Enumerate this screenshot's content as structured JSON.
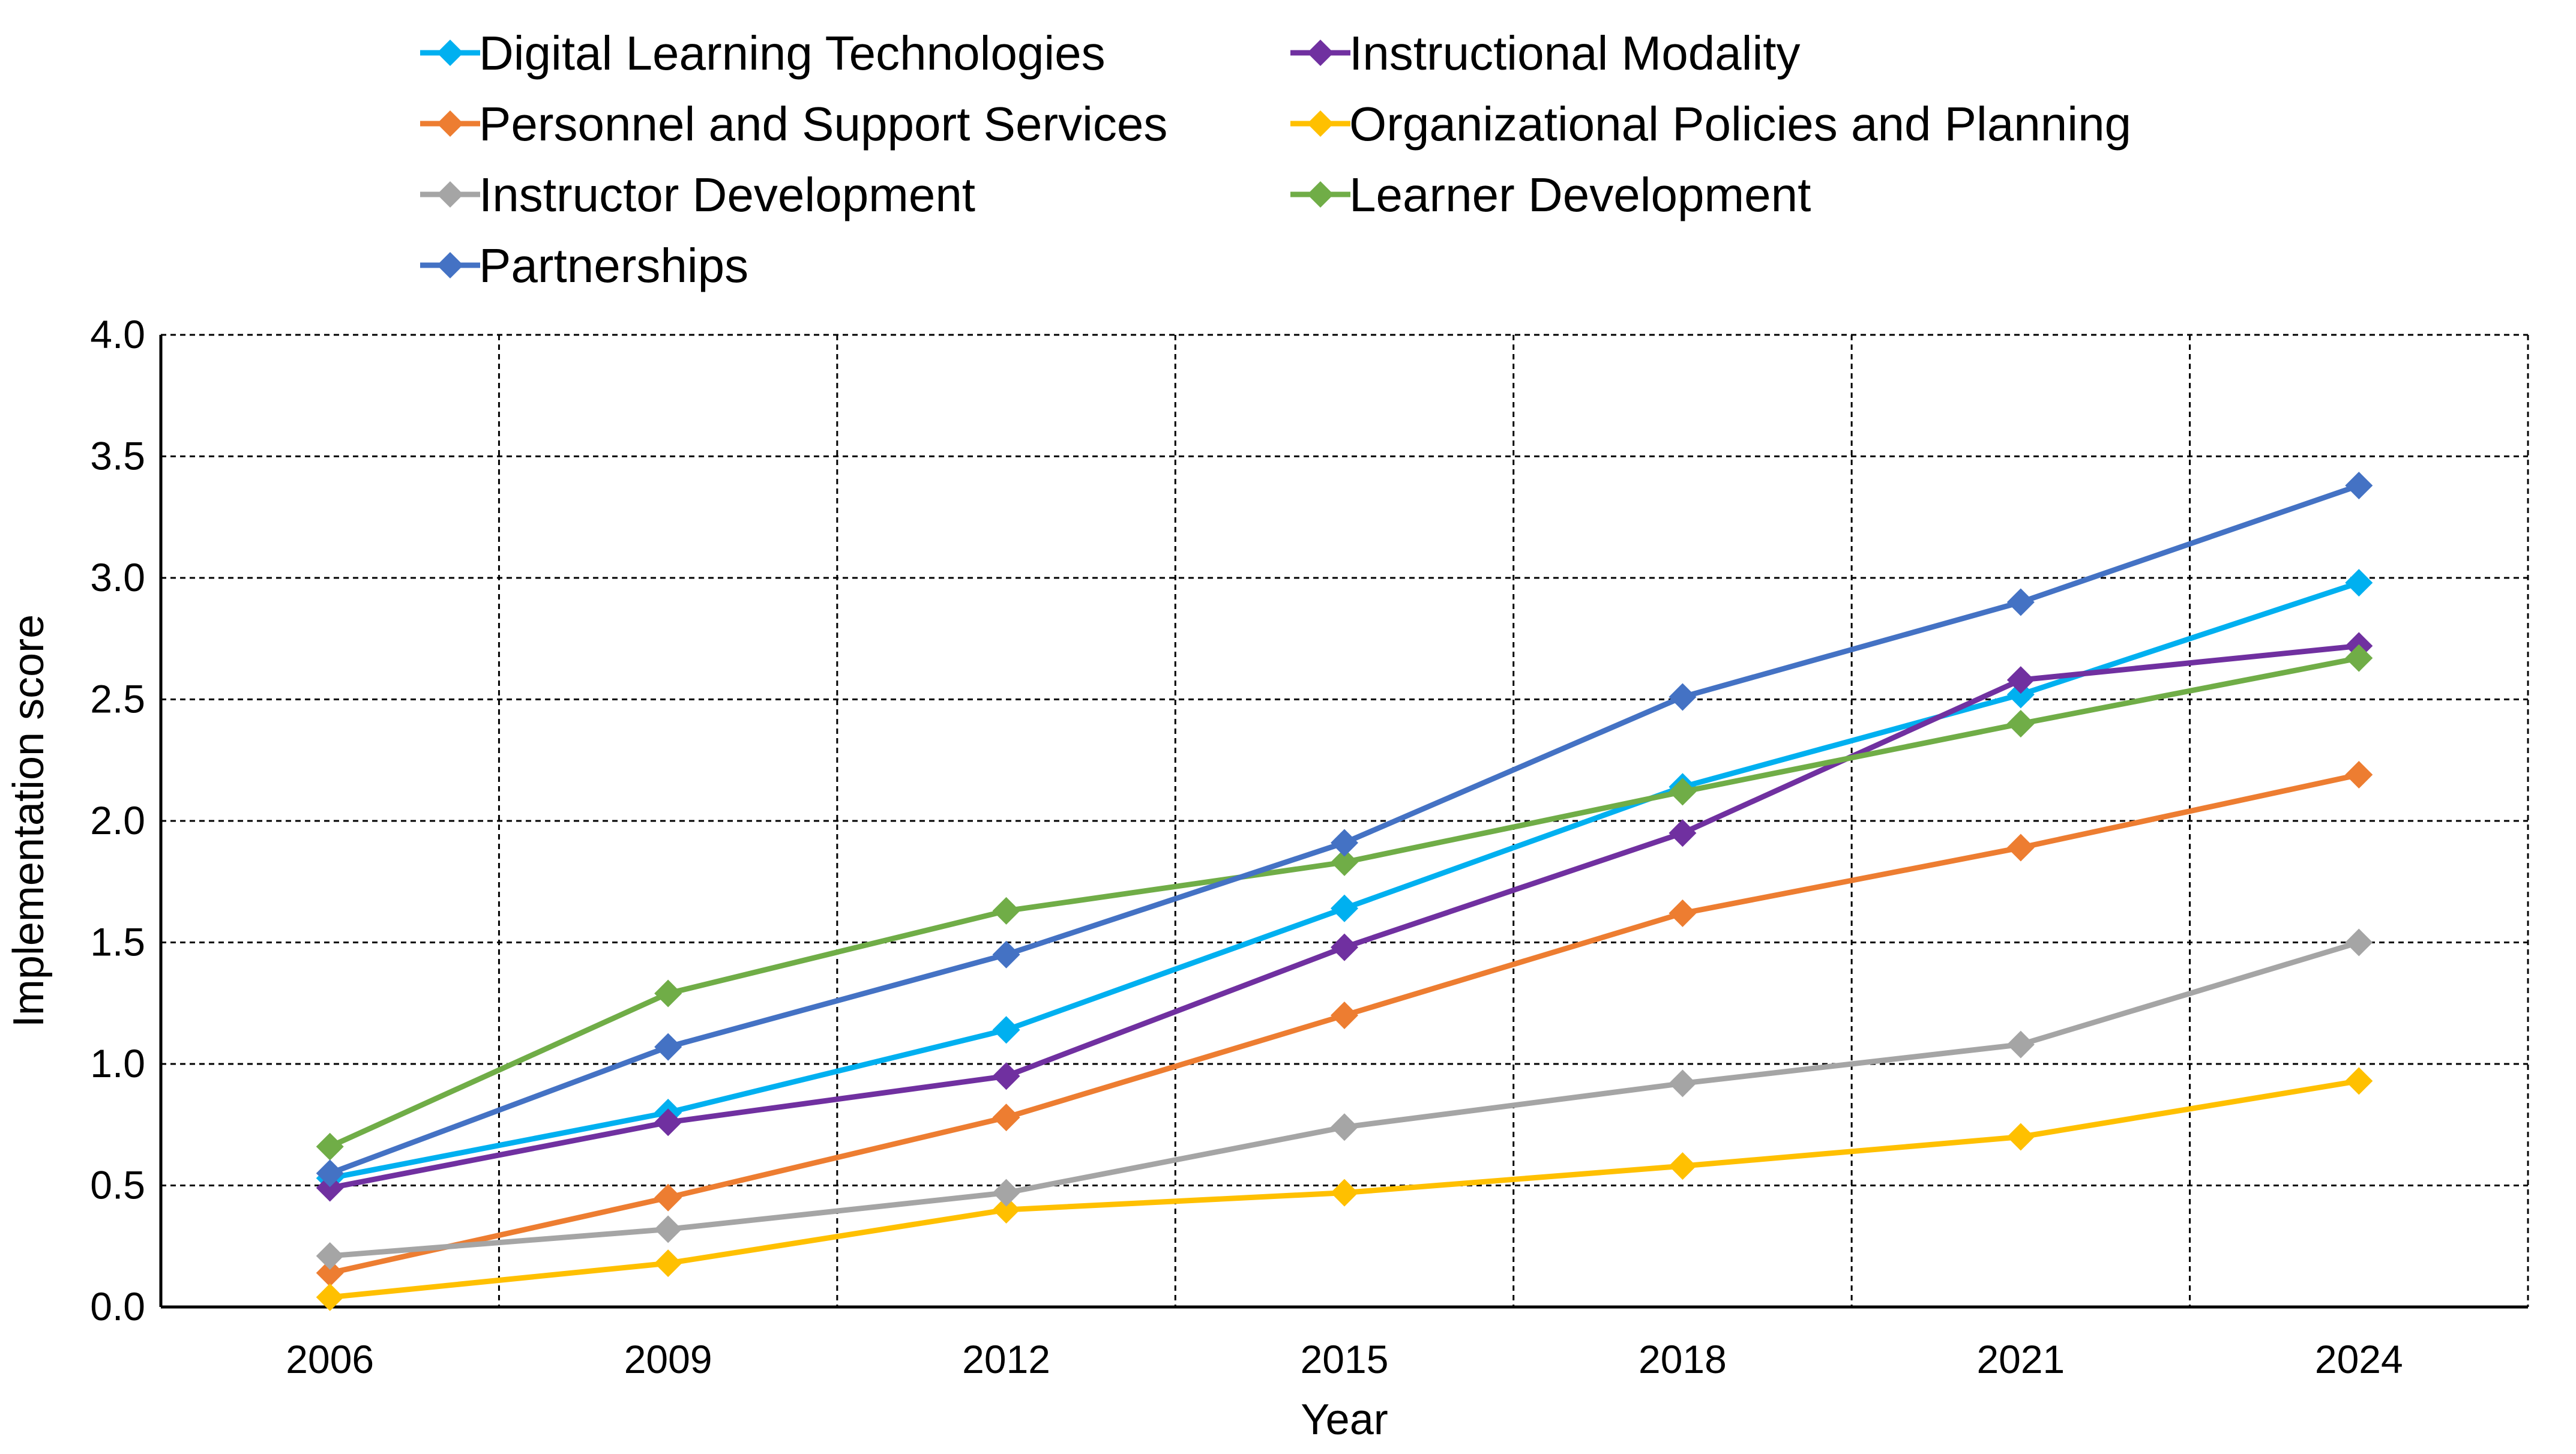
{
  "chart_data": {
    "type": "line",
    "title": "",
    "xlabel": "Year",
    "ylabel": "Implementation score",
    "categories": [
      "2006",
      "2009",
      "2012",
      "2015",
      "2018",
      "2021",
      "2024"
    ],
    "ylim": [
      0,
      4
    ],
    "y_ticks": [
      "0.0",
      "0.5",
      "1.0",
      "1.5",
      "2.0",
      "2.5",
      "3.0",
      "3.5",
      "4.0"
    ],
    "grid": true,
    "legend_position": "top",
    "marker": "diamond",
    "series": [
      {
        "name": "Digital Learning Technologies",
        "color": "#00B0F0",
        "values": [
          0.53,
          0.8,
          1.14,
          1.64,
          2.14,
          2.52,
          2.98
        ]
      },
      {
        "name": "Instructional Modality",
        "color": "#7030A0",
        "values": [
          0.49,
          0.76,
          0.95,
          1.48,
          1.95,
          2.58,
          2.72
        ]
      },
      {
        "name": "Personnel and Support Services",
        "color": "#ED7D31",
        "values": [
          0.14,
          0.45,
          0.78,
          1.2,
          1.62,
          1.89,
          2.19
        ]
      },
      {
        "name": "Organizational Policies and Planning",
        "color": "#FFC000",
        "values": [
          0.04,
          0.18,
          0.4,
          0.47,
          0.58,
          0.7,
          0.93
        ]
      },
      {
        "name": "Instructor Development",
        "color": "#A5A5A5",
        "values": [
          0.21,
          0.32,
          0.47,
          0.74,
          0.92,
          1.08,
          1.5
        ]
      },
      {
        "name": "Learner Development",
        "color": "#70AD47",
        "values": [
          0.66,
          1.29,
          1.63,
          1.83,
          2.12,
          2.4,
          2.67
        ]
      },
      {
        "name": "Partnerships",
        "color": "#4472C4",
        "values": [
          0.55,
          1.07,
          1.45,
          1.91,
          2.51,
          2.9,
          3.38
        ]
      }
    ]
  }
}
